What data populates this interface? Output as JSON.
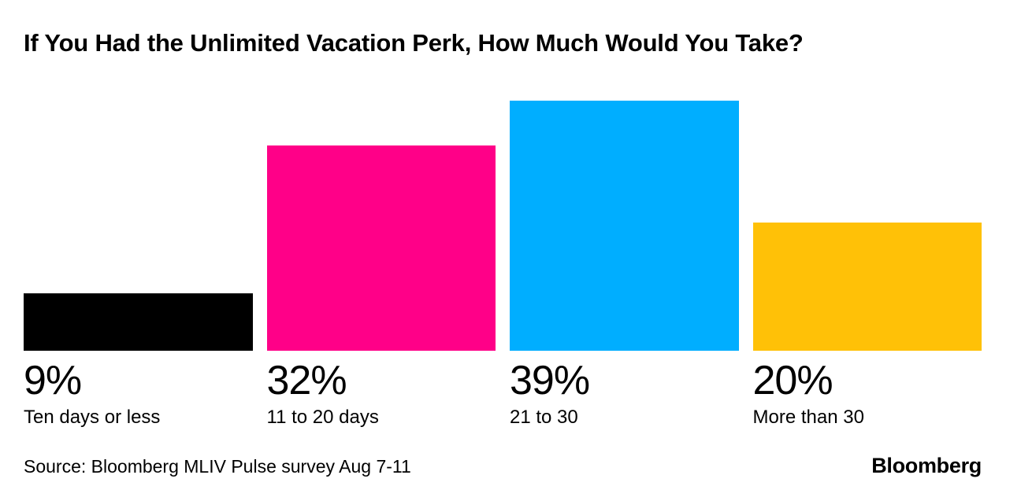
{
  "header": {
    "title": "If You Had the Unlimited Vacation Perk, How Much Would You Take?"
  },
  "chart_data": {
    "type": "bar",
    "title": "If You Had the Unlimited Vacation Perk, How Much Would You Take?",
    "categories": [
      "Ten days or less",
      "11 to 20 days",
      "21 to 30",
      "More than 30"
    ],
    "values": [
      9,
      32,
      39,
      20
    ],
    "value_labels": [
      "9%",
      "32%",
      "39%",
      "20%"
    ],
    "colors": [
      "#000000",
      "#FF0088",
      "#00AEFF",
      "#FFC107"
    ],
    "xlabel": "",
    "ylabel": "",
    "ylim": [
      0,
      39
    ],
    "grid": false,
    "legend": "none",
    "unit": "%"
  },
  "footer": {
    "source": "Source: Bloomberg MLIV Pulse survey Aug 7-11",
    "brand": "Bloomberg"
  }
}
